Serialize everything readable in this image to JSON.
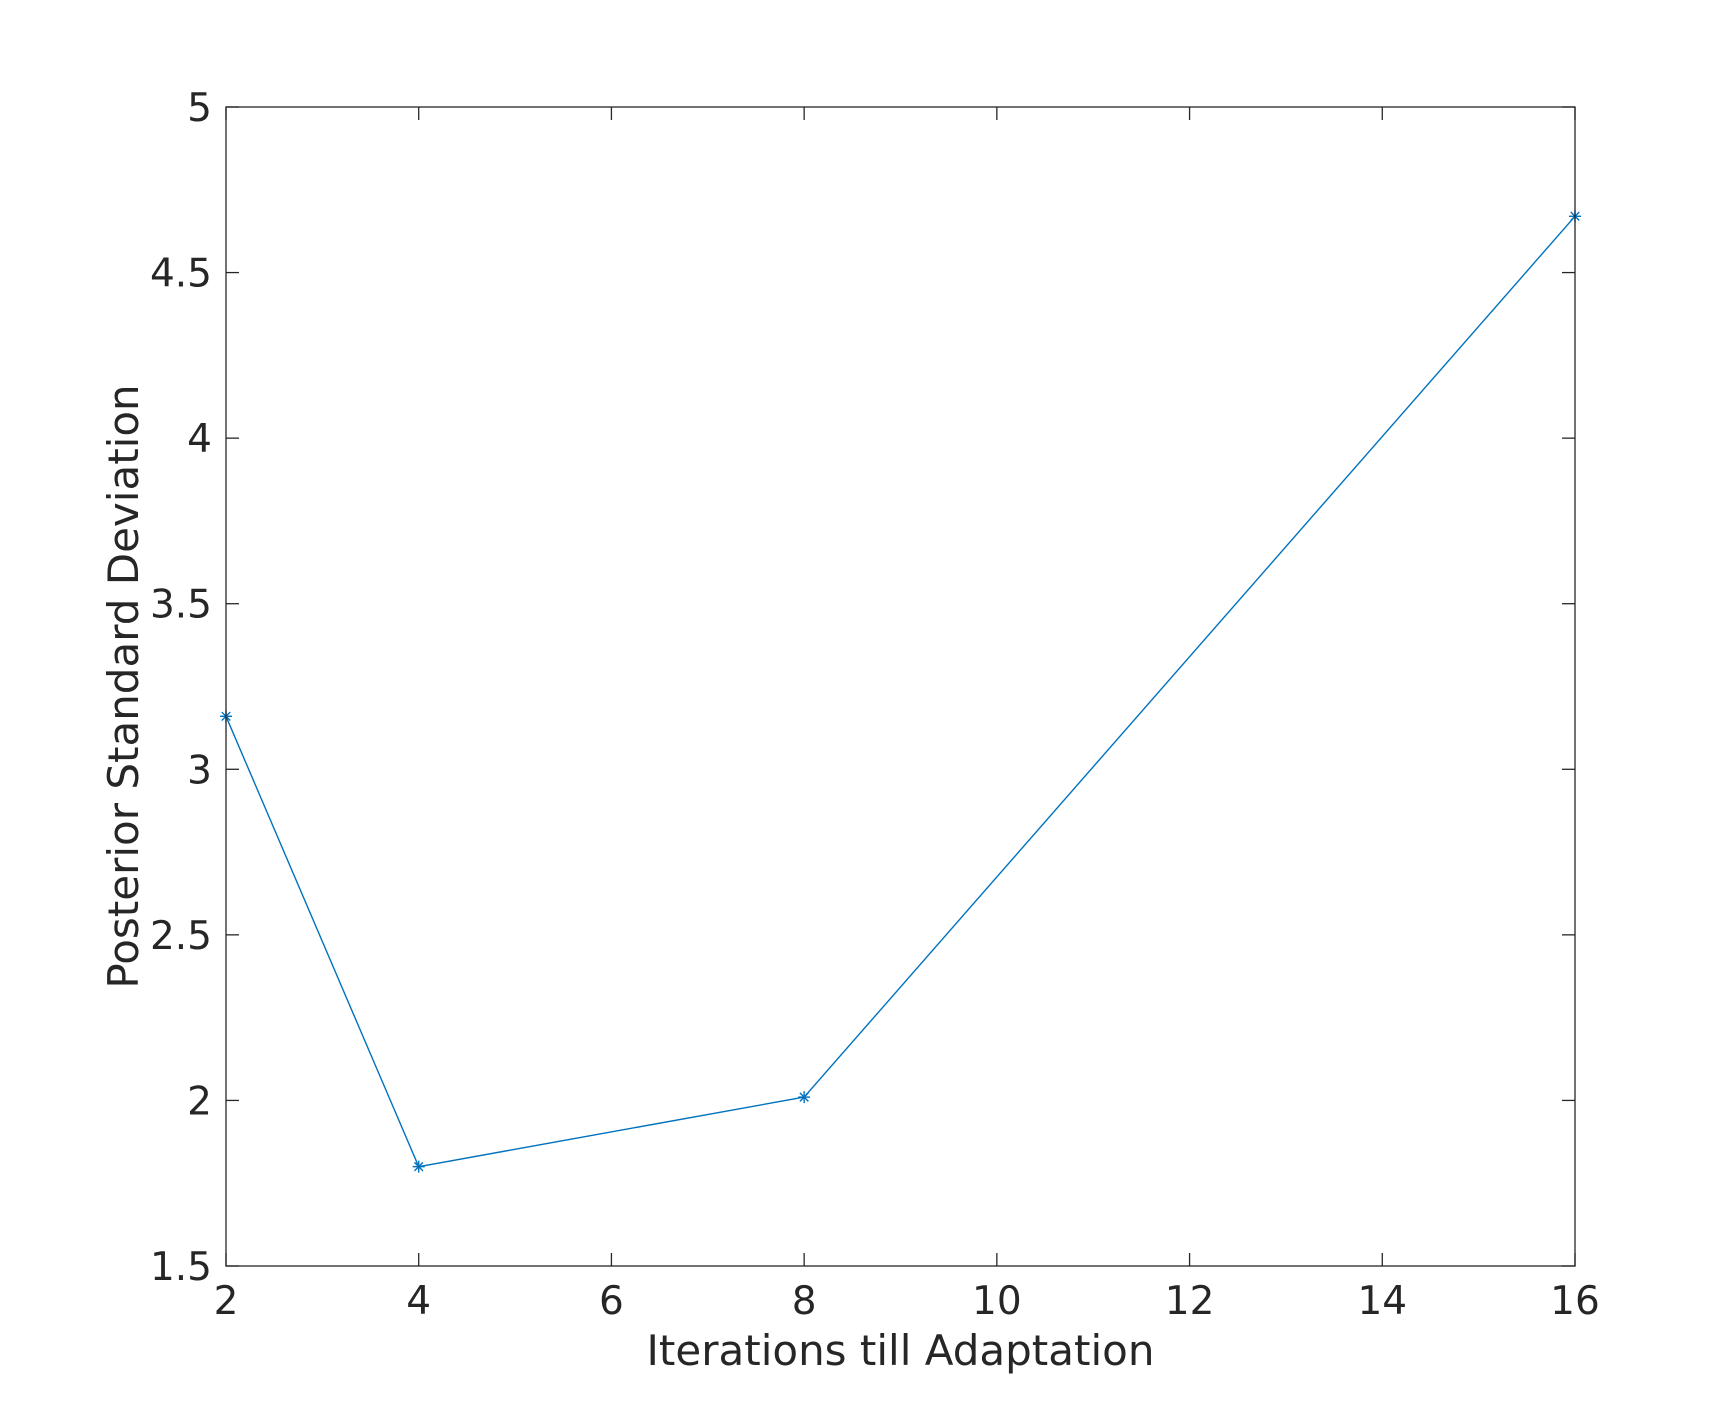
{
  "chart_data": {
    "type": "line",
    "title": "",
    "xlabel": "Iterations till Adaptation",
    "ylabel": "Posterior Standard Deviation",
    "xlim": [
      2,
      16
    ],
    "ylim": [
      1.5,
      5
    ],
    "x_ticks": [
      2,
      4,
      6,
      8,
      10,
      12,
      14,
      16
    ],
    "y_ticks": [
      1.5,
      2,
      2.5,
      3,
      3.5,
      4,
      4.5,
      5
    ],
    "x_tick_labels": [
      "2",
      "4",
      "6",
      "8",
      "10",
      "12",
      "14",
      "16"
    ],
    "y_tick_labels": [
      "1.5",
      "2",
      "2.5",
      "3",
      "3.5",
      "4",
      "4.5",
      "5"
    ],
    "grid": false,
    "box": true,
    "series": [
      {
        "x": [
          2,
          4,
          8,
          16
        ],
        "y": [
          3.16,
          1.8,
          2.01,
          4.67
        ],
        "color": "#0072BD",
        "marker": "asterisk"
      }
    ]
  }
}
